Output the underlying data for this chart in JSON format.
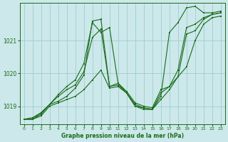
{
  "xlabel_label": "Graphe pression niveau de la mer (hPa)",
  "bg_color": "#cce8ea",
  "grid_color": "#9ecece",
  "series": [
    {
      "x": [
        0,
        1,
        2,
        3,
        4,
        5,
        6,
        7,
        8,
        9,
        10,
        11,
        12,
        13,
        14,
        15,
        16,
        17,
        18,
        19,
        20,
        21,
        22,
        23
      ],
      "y": [
        1018.6,
        1018.6,
        1018.7,
        1019.0,
        1019.1,
        1019.2,
        1019.3,
        1019.5,
        1019.8,
        1020.1,
        1019.55,
        1019.6,
        1019.4,
        1019.0,
        1018.9,
        1018.9,
        1019.2,
        1019.5,
        1019.9,
        1020.2,
        1021.0,
        1021.5,
        1021.7,
        1021.75
      ]
    },
    {
      "x": [
        0,
        1,
        2,
        3,
        4,
        5,
        6,
        7,
        8,
        9,
        10,
        11,
        12,
        13,
        14,
        15,
        16,
        17,
        18,
        19,
        20,
        21,
        22,
        23
      ],
      "y": [
        1018.6,
        1018.6,
        1018.75,
        1019.05,
        1019.3,
        1019.5,
        1019.65,
        1020.05,
        1021.1,
        1021.35,
        1019.6,
        1019.65,
        1019.4,
        1019.05,
        1018.95,
        1018.9,
        1019.4,
        1019.6,
        1020.1,
        1021.4,
        1021.5,
        1021.7,
        1021.8,
        1021.85
      ]
    },
    {
      "x": [
        0,
        1,
        2,
        3,
        4,
        5,
        6,
        7,
        8,
        9,
        10,
        11,
        12,
        13,
        14,
        15,
        16,
        17,
        18,
        19,
        20,
        21,
        22,
        23
      ],
      "y": [
        1018.6,
        1018.6,
        1018.8,
        1019.05,
        1019.35,
        1019.6,
        1019.8,
        1020.3,
        1021.55,
        1021.25,
        1021.4,
        1019.7,
        1019.45,
        1019.1,
        1019.0,
        1018.95,
        1019.5,
        1019.6,
        1019.9,
        1021.2,
        1021.3,
        1021.65,
        1021.8,
        1021.85
      ]
    },
    {
      "x": [
        0,
        1,
        2,
        3,
        4,
        5,
        6,
        7,
        8,
        9,
        10,
        11,
        12,
        13,
        14,
        15,
        16,
        17,
        18,
        19,
        20,
        21,
        22,
        23
      ],
      "y": [
        1018.6,
        1018.65,
        1018.8,
        1019.05,
        1019.15,
        1019.3,
        1019.55,
        1019.95,
        1021.6,
        1021.65,
        1019.6,
        1019.7,
        1019.4,
        1019.0,
        1018.95,
        1018.9,
        1019.3,
        1021.25,
        1021.55,
        1022.0,
        1022.05,
        1021.85,
        1021.85,
        1021.9
      ]
    }
  ],
  "ylim": [
    1018.45,
    1022.15
  ],
  "yticks": [
    1019,
    1020,
    1021
  ],
  "ytick_labels": [
    "1019",
    "1020",
    "1021"
  ],
  "xlim": [
    -0.5,
    23.5
  ],
  "xticks": [
    0,
    1,
    2,
    3,
    4,
    5,
    6,
    7,
    8,
    9,
    10,
    11,
    12,
    13,
    14,
    15,
    16,
    17,
    18,
    19,
    20,
    21,
    22,
    23
  ],
  "line_color": "#1a6b1a",
  "marker_color": "#1a6b1a"
}
